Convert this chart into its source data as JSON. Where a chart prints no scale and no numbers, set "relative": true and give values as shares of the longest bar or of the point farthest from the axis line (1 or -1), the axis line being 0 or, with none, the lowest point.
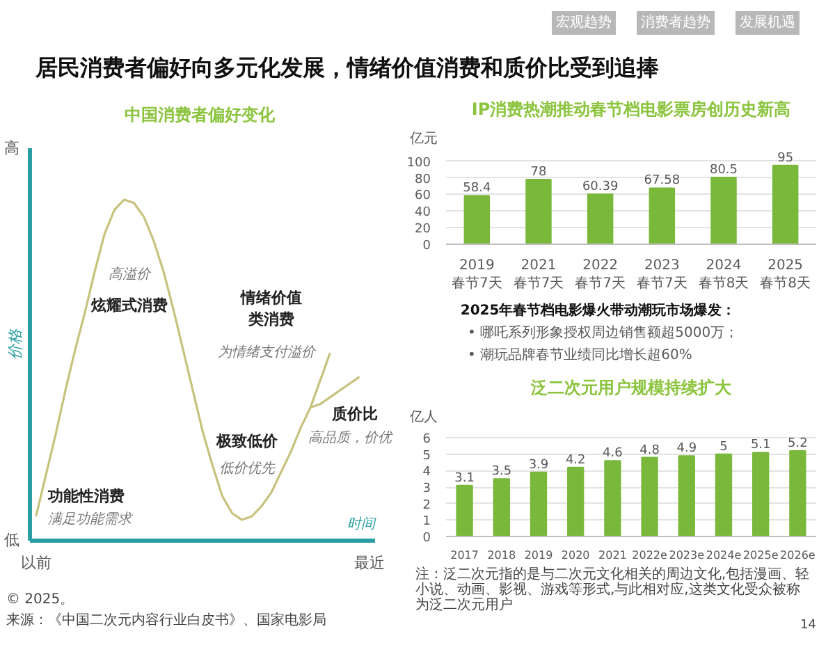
{
  "chart_data": [
    {
      "type": "other",
      "title": "居民消费者偏好向多元化发展，情绪价值消费和质价比受到追捧",
      "annotations": [
        "宏观趋势",
        "消费者趋势",
        "发展机遇"
      ]
    },
    {
      "type": "line",
      "title": "中国消费者偏好变化",
      "xlabel": "时间",
      "ylabel": "价格",
      "relative": true,
      "categories": [
        "以前",
        null,
        null,
        null,
        null,
        null,
        null,
        null,
        null,
        null,
        null,
        null,
        null,
        null,
        null,
        null,
        null,
        null,
        null,
        null,
        null,
        null,
        null,
        null,
        null,
        null,
        null,
        null,
        null,
        null,
        null,
        null,
        null,
        null,
        "最近"
      ],
      "series": [
        {
          "color": "#c8c27e",
          "values": [
            0.07,
            0.19,
            0.31,
            0.44,
            0.56,
            0.67,
            0.79,
            0.9,
            0.97,
            1,
            0.99,
            0.95,
            0.88,
            0.79,
            0.68,
            0.56,
            0.44,
            0.32,
            0.22,
            0.13,
            0.08,
            0.06,
            0.07,
            0.1,
            0.14,
            0.2,
            0.26,
            0.33,
            0.39,
            0.47,
            0.55,
            null,
            null,
            null,
            null
          ]
        },
        {
          "color": "#c8c27e",
          "values": [
            null,
            null,
            null,
            null,
            null,
            null,
            null,
            null,
            null,
            null,
            null,
            null,
            null,
            null,
            null,
            null,
            null,
            null,
            null,
            null,
            null,
            null,
            null,
            null,
            null,
            null,
            null,
            null,
            0.39,
            0.4,
            0.42,
            0.44,
            0.46,
            0.48,
            null
          ]
        }
      ],
      "annotations": [
        "高",
        "低",
        "高溢价",
        "炫耀式消费",
        "功能性消费",
        "满足功能需求",
        "极致低价",
        "低价优先",
        "情绪价值类消费",
        "为情绪支付溢价",
        "质价比",
        "高品质，价优",
        "© 2025。",
        "来源：《中国二次元内容行业白皮书》、国家电影局"
      ]
    },
    {
      "type": "bar",
      "title": "IP消费热潮推动春节档电影票房创历史新高",
      "ylabel": "亿元",
      "categories": [
        "2019春节7天",
        "2021春节7天",
        "2022春节7天",
        "2023春节7天",
        "2024春节8天",
        "2025春节8天"
      ],
      "values": [
        58.4,
        78,
        60.39,
        67.58,
        80.5,
        95
      ],
      "color": "#7ab83c",
      "ylim": [
        0,
        100
      ],
      "yticks": [
        0,
        20,
        40,
        60,
        80,
        100
      ],
      "grid": "y",
      "data_labels": true
    },
    {
      "type": "other",
      "title": "2025年春节档电影爆火带动潮玩市场爆发：",
      "annotations": [
        "• 哪吒系列形象授权周边销售额超5000万；",
        "• 潮玩品牌春节业绩同比增长超60%"
      ]
    },
    {
      "type": "bar",
      "title": "泛二次元用户规模持续扩大",
      "ylabel": "亿人",
      "categories": [
        "2017",
        "2018",
        "2019",
        "2020",
        "2021",
        "2022e",
        "2023e",
        "2024e",
        "2025e",
        "2026e"
      ],
      "values": [
        3.1,
        3.5,
        3.9,
        4.2,
        4.6,
        4.8,
        4.9,
        5,
        5.1,
        5.2
      ],
      "color": "#7ab83c",
      "ylim": [
        0,
        6
      ],
      "yticks": [
        0,
        1,
        2,
        3,
        4,
        5,
        6
      ],
      "grid": "y",
      "data_labels": true,
      "annotations": [
        "注：泛二次元指的是与二次元文化相关的周边文化,包括漫画、轻小说、动画、影视、游戏等形式,与此相对应,这类文化受众被称为泛二次元用户",
        "14"
      ]
    }
  ]
}
